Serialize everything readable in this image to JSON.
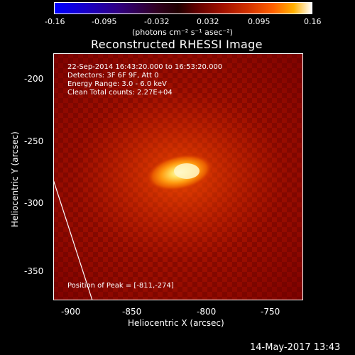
{
  "colorbar": {
    "ticks": [
      "-0.16",
      "-0.095",
      "-0.032",
      "0.032",
      "0.095",
      "0.16"
    ],
    "units": "(photons cm⁻² s⁻¹ asec⁻²)"
  },
  "title": "Reconstructed RHESSI Image",
  "info": {
    "time": "22-Sep-2014 16:43:20.000 to 16:53:20.000",
    "detectors": "Detectors: 3F 6F 9F, Att 0",
    "energy": "Energy Range: 3.0 - 6.0 keV",
    "clean": "Clean     Total counts: 2.27E+04",
    "peak": "Position of Peak = [-811,-274]"
  },
  "axes": {
    "ylabel": "Heliocentric Y (arcsec)",
    "xlabel": "Heliocentric X (arcsec)",
    "yticks": [
      "-200",
      "-250",
      "-300",
      "-350"
    ],
    "xticks": [
      "-900",
      "-850",
      "-800",
      "-750"
    ]
  },
  "timestamp": "14-May-2017 13:43",
  "colors": {
    "background": "#000000",
    "frame": "#ffffff"
  }
}
